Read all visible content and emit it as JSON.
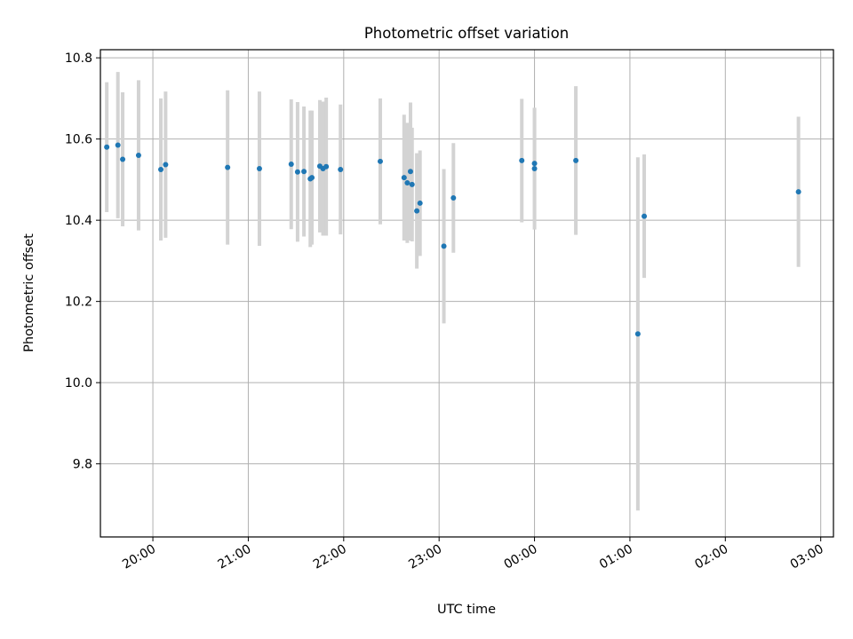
{
  "chart_data": {
    "type": "scatter",
    "title": "Photometric offset variation",
    "xlabel": "UTC time",
    "ylabel": "Photometric offset",
    "x_ticks": [
      "20:00",
      "21:00",
      "22:00",
      "23:00",
      "00:00",
      "01:00",
      "02:00",
      "03:00"
    ],
    "y_ticks": [
      "9.8",
      "10.0",
      "10.2",
      "10.4",
      "10.6",
      "10.8"
    ],
    "ylim": [
      9.62,
      10.82
    ],
    "xlim": [
      "19:27",
      "03:08"
    ],
    "grid": true,
    "series": [
      {
        "marker_color": "#1f77b4",
        "errorbar_color": "#d3d3d3",
        "points": [
          {
            "x": "19:31",
            "y": 10.58,
            "err": 0.16
          },
          {
            "x": "19:38",
            "y": 10.585,
            "err": 0.18
          },
          {
            "x": "19:41",
            "y": 10.55,
            "err": 0.165
          },
          {
            "x": "19:51",
            "y": 10.56,
            "err": 0.185
          },
          {
            "x": "20:05",
            "y": 10.525,
            "err": 0.175
          },
          {
            "x": "20:08",
            "y": 10.537,
            "err": 0.18
          },
          {
            "x": "20:47",
            "y": 10.53,
            "err": 0.19
          },
          {
            "x": "21:07",
            "y": 10.527,
            "err": 0.19
          },
          {
            "x": "21:27",
            "y": 10.538,
            "err": 0.16
          },
          {
            "x": "21:31",
            "y": 10.519,
            "err": 0.172
          },
          {
            "x": "21:35",
            "y": 10.52,
            "err": 0.16
          },
          {
            "x": "21:39",
            "y": 10.502,
            "err": 0.168
          },
          {
            "x": "21:40",
            "y": 10.505,
            "err": 0.165
          },
          {
            "x": "21:45",
            "y": 10.533,
            "err": 0.163
          },
          {
            "x": "21:47",
            "y": 10.527,
            "err": 0.165
          },
          {
            "x": "21:49",
            "y": 10.532,
            "err": 0.17
          },
          {
            "x": "21:58",
            "y": 10.525,
            "err": 0.16
          },
          {
            "x": "22:23",
            "y": 10.545,
            "err": 0.155
          },
          {
            "x": "22:38",
            "y": 10.505,
            "err": 0.155
          },
          {
            "x": "22:40",
            "y": 10.492,
            "err": 0.148
          },
          {
            "x": "22:42",
            "y": 10.52,
            "err": 0.17
          },
          {
            "x": "22:43",
            "y": 10.488,
            "err": 0.14
          },
          {
            "x": "22:46",
            "y": 10.423,
            "err": 0.142
          },
          {
            "x": "22:48",
            "y": 10.442,
            "err": 0.13
          },
          {
            "x": "23:03",
            "y": 10.336,
            "err": 0.19
          },
          {
            "x": "23:09",
            "y": 10.455,
            "err": 0.135
          },
          {
            "x": "23:52",
            "y": 10.547,
            "err": 0.152
          },
          {
            "x": "00:00",
            "y": 10.54,
            "err": 0.135
          },
          {
            "x": "00:00",
            "y": 10.527,
            "err": 0.15
          },
          {
            "x": "00:26",
            "y": 10.547,
            "err": 0.183
          },
          {
            "x": "01:05",
            "y": 10.12,
            "err": 0.435
          },
          {
            "x": "01:09",
            "y": 10.41,
            "err": 0.152
          },
          {
            "x": "02:46",
            "y": 10.47,
            "err": 0.185
          }
        ]
      }
    ]
  }
}
